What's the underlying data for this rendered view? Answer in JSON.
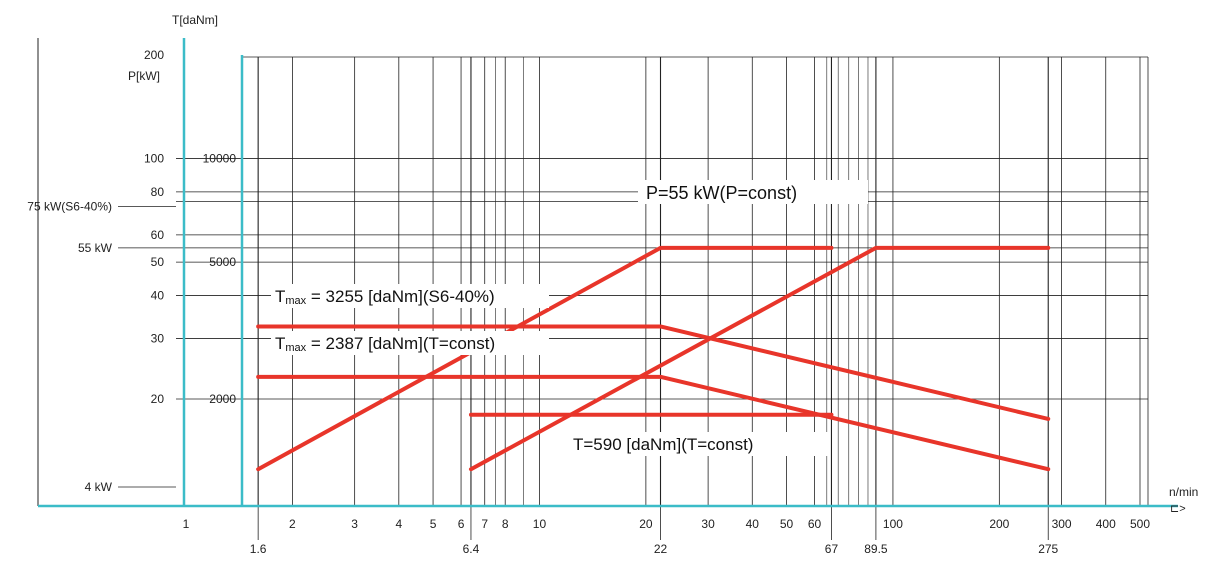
{
  "chart_data": {
    "type": "line",
    "x_scale": "log",
    "y_scale": "log",
    "xlabel": "n/min",
    "x_arrow": "⊏>",
    "xlim": [
      1,
      560
    ],
    "x_ticks": [
      1,
      2,
      3,
      4,
      5,
      6,
      7,
      8,
      10,
      20,
      30,
      40,
      50,
      60,
      100,
      200,
      300,
      400,
      500
    ],
    "x_ticks_bold": [
      1.6,
      6.4,
      22,
      67,
      89.5,
      275
    ],
    "x_ticks_bold_labels": [
      "1.6",
      "6.4",
      "22",
      "67",
      "89.5",
      "275"
    ],
    "y_axis_T": {
      "label": "T[daNm]",
      "ticks": [
        {
          "value": 10000,
          "label": "10000"
        },
        {
          "value": 5000,
          "label": "5000"
        },
        {
          "value": 2000,
          "label": "2000"
        }
      ]
    },
    "y_axis_P": {
      "label": "P[kW]",
      "ticks": [
        {
          "value": 200,
          "label": "200"
        },
        {
          "value": 100,
          "label": "100"
        },
        {
          "value": 80,
          "label": "80"
        },
        {
          "value": 60,
          "label": "60"
        },
        {
          "value": 50,
          "label": "50"
        },
        {
          "value": 40,
          "label": "40"
        },
        {
          "value": 30,
          "label": "30"
        },
        {
          "value": 20,
          "label": "20"
        }
      ]
    },
    "power_markers": [
      {
        "label": "75 kW(S6-40%)",
        "value": 75
      },
      {
        "label": "55 kW",
        "value": 55
      },
      {
        "label": "4 kW",
        "value": 4
      }
    ],
    "series": [
      {
        "color": "#e8352a",
        "points": [
          [
            1.6,
            32.5
          ],
          [
            22,
            32.5
          ],
          [
            275,
            17.5
          ]
        ]
      },
      {
        "color": "#e8352a",
        "points": [
          [
            1.6,
            23.2
          ],
          [
            22,
            23.2
          ],
          [
            275,
            12.5
          ]
        ]
      },
      {
        "color": "#e8352a",
        "points": [
          [
            6.4,
            18
          ],
          [
            67,
            18
          ]
        ]
      },
      {
        "color": "#e8352a",
        "points": [
          [
            1.6,
            12.5
          ],
          [
            22,
            55
          ],
          [
            67,
            55
          ]
        ]
      },
      {
        "color": "#e8352a",
        "points": [
          [
            6.4,
            12.5
          ],
          [
            89.5,
            55
          ],
          [
            275,
            55
          ]
        ]
      }
    ],
    "annotations": {
      "p_const": "P=55 kW(P=const)",
      "tmax1_T": "T",
      "tmax1_sub": "max",
      "tmax1_rest": " = 3255 [daNm](S6-40%)",
      "tmax2_T": "T",
      "tmax2_sub": "max",
      "tmax2_rest": " = 2387 [daNm](T=const)",
      "t590": "T=590 [daNm](T=const)"
    },
    "colors": {
      "curve": "#e8352a",
      "axis": "#3bbcc8",
      "grid": "#222222"
    }
  }
}
